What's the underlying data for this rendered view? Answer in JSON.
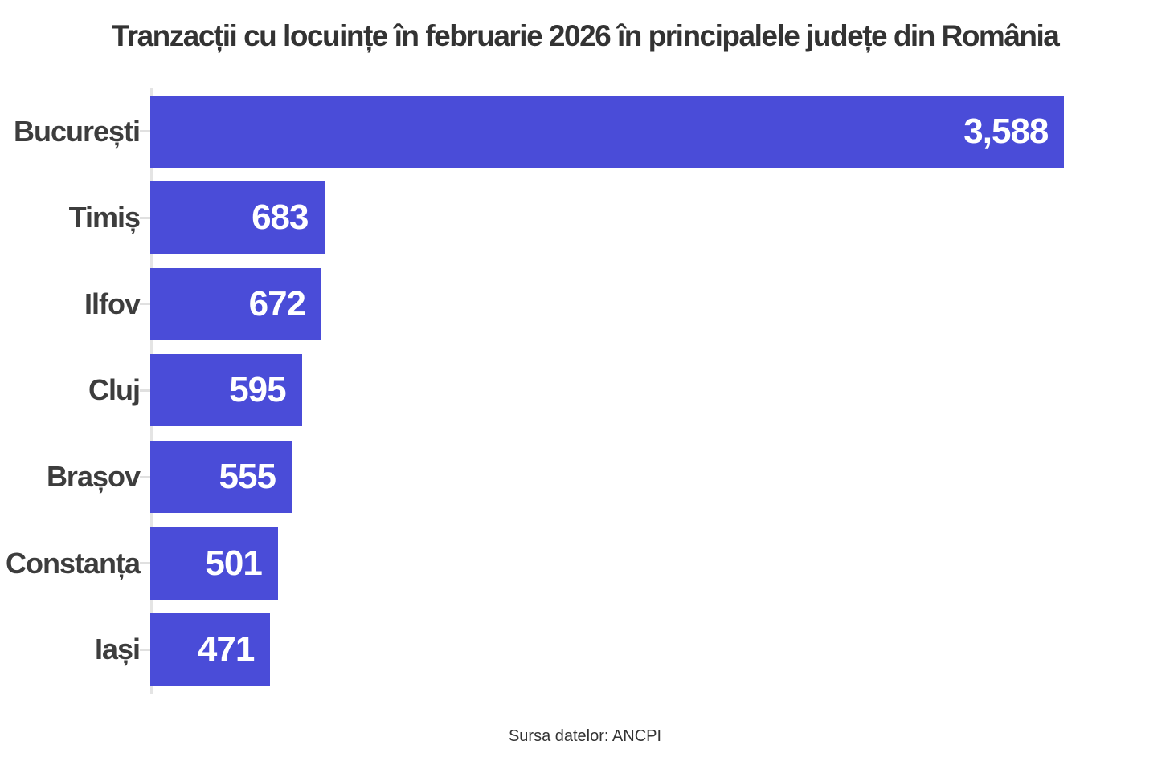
{
  "chart_data": {
    "type": "bar",
    "orientation": "horizontal",
    "title": "Tranzacții cu locuințe în februarie 2026 în principalele județe din România",
    "categories": [
      "București",
      "Timiș",
      "Ilfov",
      "Cluj",
      "Brașov",
      "Constanța",
      "Iași"
    ],
    "values": [
      3588,
      683,
      672,
      595,
      555,
      501,
      471
    ],
    "value_labels": [
      "3,588",
      "683",
      "672",
      "595",
      "555",
      "501",
      "471"
    ],
    "xlim": [
      0,
      4000
    ],
    "grid": false,
    "legend": "none",
    "bar_color": "#4a4cd8",
    "label_color": "#3d3d3d",
    "value_label_color": "#ffffff",
    "axis_line_color": "#e4e4e4",
    "source_note": "Sursa datelor: ANCPI"
  }
}
